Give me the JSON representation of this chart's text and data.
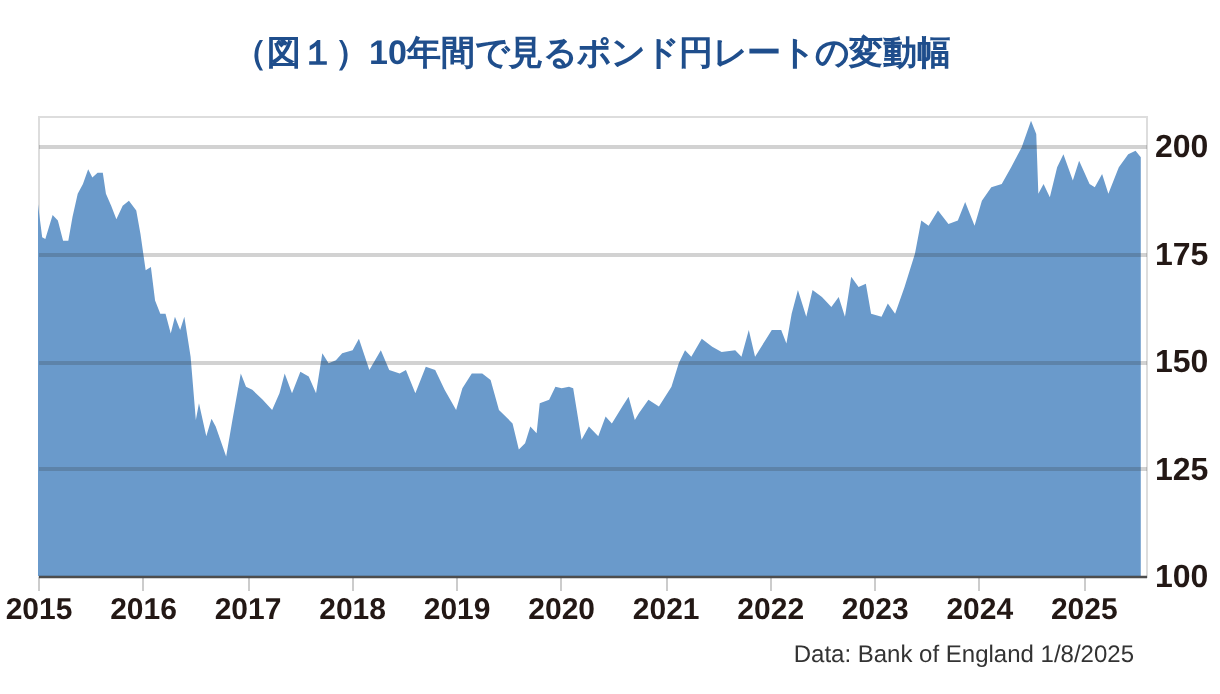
{
  "chart_data": {
    "type": "area",
    "title": "（図１）10年間で見るポンド円レートの変動幅",
    "annotations": [
      "Data: Bank of England 1/8/2025"
    ],
    "x": [
      2015.0,
      2015.04,
      2015.07,
      2015.14,
      2015.19,
      2015.24,
      2015.29,
      2015.33,
      2015.38,
      2015.43,
      2015.48,
      2015.52,
      2015.57,
      2015.62,
      2015.65,
      2015.7,
      2015.75,
      2015.81,
      2015.87,
      2015.94,
      2015.98,
      2016.03,
      2016.08,
      2016.12,
      2016.17,
      2016.22,
      2016.27,
      2016.31,
      2016.36,
      2016.4,
      2016.46,
      2016.51,
      2016.54,
      2016.61,
      2016.66,
      2016.7,
      2016.8,
      2016.86,
      2016.94,
      2016.99,
      2017.05,
      2017.15,
      2017.24,
      2017.31,
      2017.36,
      2017.43,
      2017.51,
      2017.59,
      2017.66,
      2017.72,
      2017.78,
      2017.85,
      2017.91,
      2018.01,
      2018.07,
      2018.17,
      2018.28,
      2018.36,
      2018.46,
      2018.52,
      2018.61,
      2018.71,
      2018.8,
      2018.89,
      2019.0,
      2019.06,
      2019.15,
      2019.25,
      2019.33,
      2019.41,
      2019.54,
      2019.6,
      2019.66,
      2019.71,
      2019.77,
      2019.8,
      2019.89,
      2019.95,
      2020.01,
      2020.08,
      2020.12,
      2020.2,
      2020.27,
      2020.36,
      2020.43,
      2020.49,
      2020.59,
      2020.65,
      2020.71,
      2020.75,
      2020.84,
      2020.94,
      2021.06,
      2021.13,
      2021.19,
      2021.25,
      2021.35,
      2021.45,
      2021.54,
      2021.67,
      2021.73,
      2021.8,
      2021.86,
      2021.96,
      2022.02,
      2022.11,
      2022.16,
      2022.21,
      2022.27,
      2022.35,
      2022.41,
      2022.5,
      2022.59,
      2022.66,
      2022.72,
      2022.78,
      2022.85,
      2022.92,
      2022.97,
      2023.07,
      2023.13,
      2023.2,
      2023.29,
      2023.39,
      2023.45,
      2023.52,
      2023.61,
      2023.71,
      2023.8,
      2023.87,
      2023.96,
      2024.03,
      2024.12,
      2024.22,
      2024.31,
      2024.41,
      2024.5,
      2024.55,
      2024.57,
      2024.62,
      2024.68,
      2024.75,
      2024.81,
      2024.9,
      2024.96,
      2025.06,
      2025.11,
      2025.18,
      2025.24,
      2025.34,
      2025.43,
      2025.5,
      2025.55
    ],
    "series": [
      {
        "color": "#6a9acb",
        "values": [
          186.5,
          178.8,
          178.4,
          184,
          182.7,
          178,
          178,
          183.5,
          188.9,
          191.2,
          194.6,
          192.7,
          193.8,
          193.8,
          188.9,
          186.1,
          183,
          186.1,
          187.3,
          185,
          179.6,
          171.1,
          171.9,
          164.1,
          161,
          161,
          156.4,
          160.3,
          157.2,
          160.3,
          151,
          136.3,
          140.2,
          132.5,
          136.6,
          134.8,
          127.8,
          136.3,
          147.1,
          144,
          143.3,
          141,
          138.6,
          142.5,
          147.1,
          142.5,
          147.5,
          146.4,
          142.5,
          151.8,
          149.5,
          150.2,
          151.8,
          152.5,
          155.2,
          147.9,
          152.5,
          147.9,
          147.1,
          147.9,
          142.5,
          148.7,
          147.9,
          143.3,
          138.6,
          143.7,
          147.1,
          147.1,
          145.6,
          138.6,
          135.5,
          129.4,
          130.9,
          134.8,
          133.2,
          140.2,
          141,
          144,
          143.7,
          144,
          143.7,
          131.7,
          134.8,
          132.5,
          137.1,
          135.5,
          139.4,
          141.7,
          136.3,
          137.9,
          141,
          139.4,
          144,
          149.5,
          152.5,
          151,
          155.2,
          153.3,
          152.1,
          152.5,
          151,
          157.2,
          151,
          154.9,
          157.2,
          157.2,
          154.1,
          161,
          166.5,
          160.3,
          166.5,
          164.9,
          162.6,
          164.9,
          160.3,
          169.6,
          167.2,
          168,
          161,
          160.3,
          163.4,
          161,
          167.2,
          175,
          182.7,
          181.5,
          185,
          181.9,
          182.7,
          187,
          181.5,
          187.3,
          190.4,
          191.2,
          195.1,
          199.7,
          205.9,
          202.8,
          188.9,
          191.2,
          188.1,
          195.1,
          198.1,
          192,
          196.6,
          191.2,
          190.4,
          193.5,
          188.9,
          195.1,
          198.1,
          198.9,
          197.4
        ]
      }
    ],
    "xlim": [
      2015,
      2025.6
    ],
    "xticks": [
      2015,
      2016,
      2017,
      2018,
      2019,
      2020,
      2021,
      2022,
      2023,
      2024,
      2025
    ],
    "ylim": [
      100,
      207
    ],
    "yticks": [
      100,
      125,
      150,
      175,
      200
    ],
    "grid": "y"
  }
}
